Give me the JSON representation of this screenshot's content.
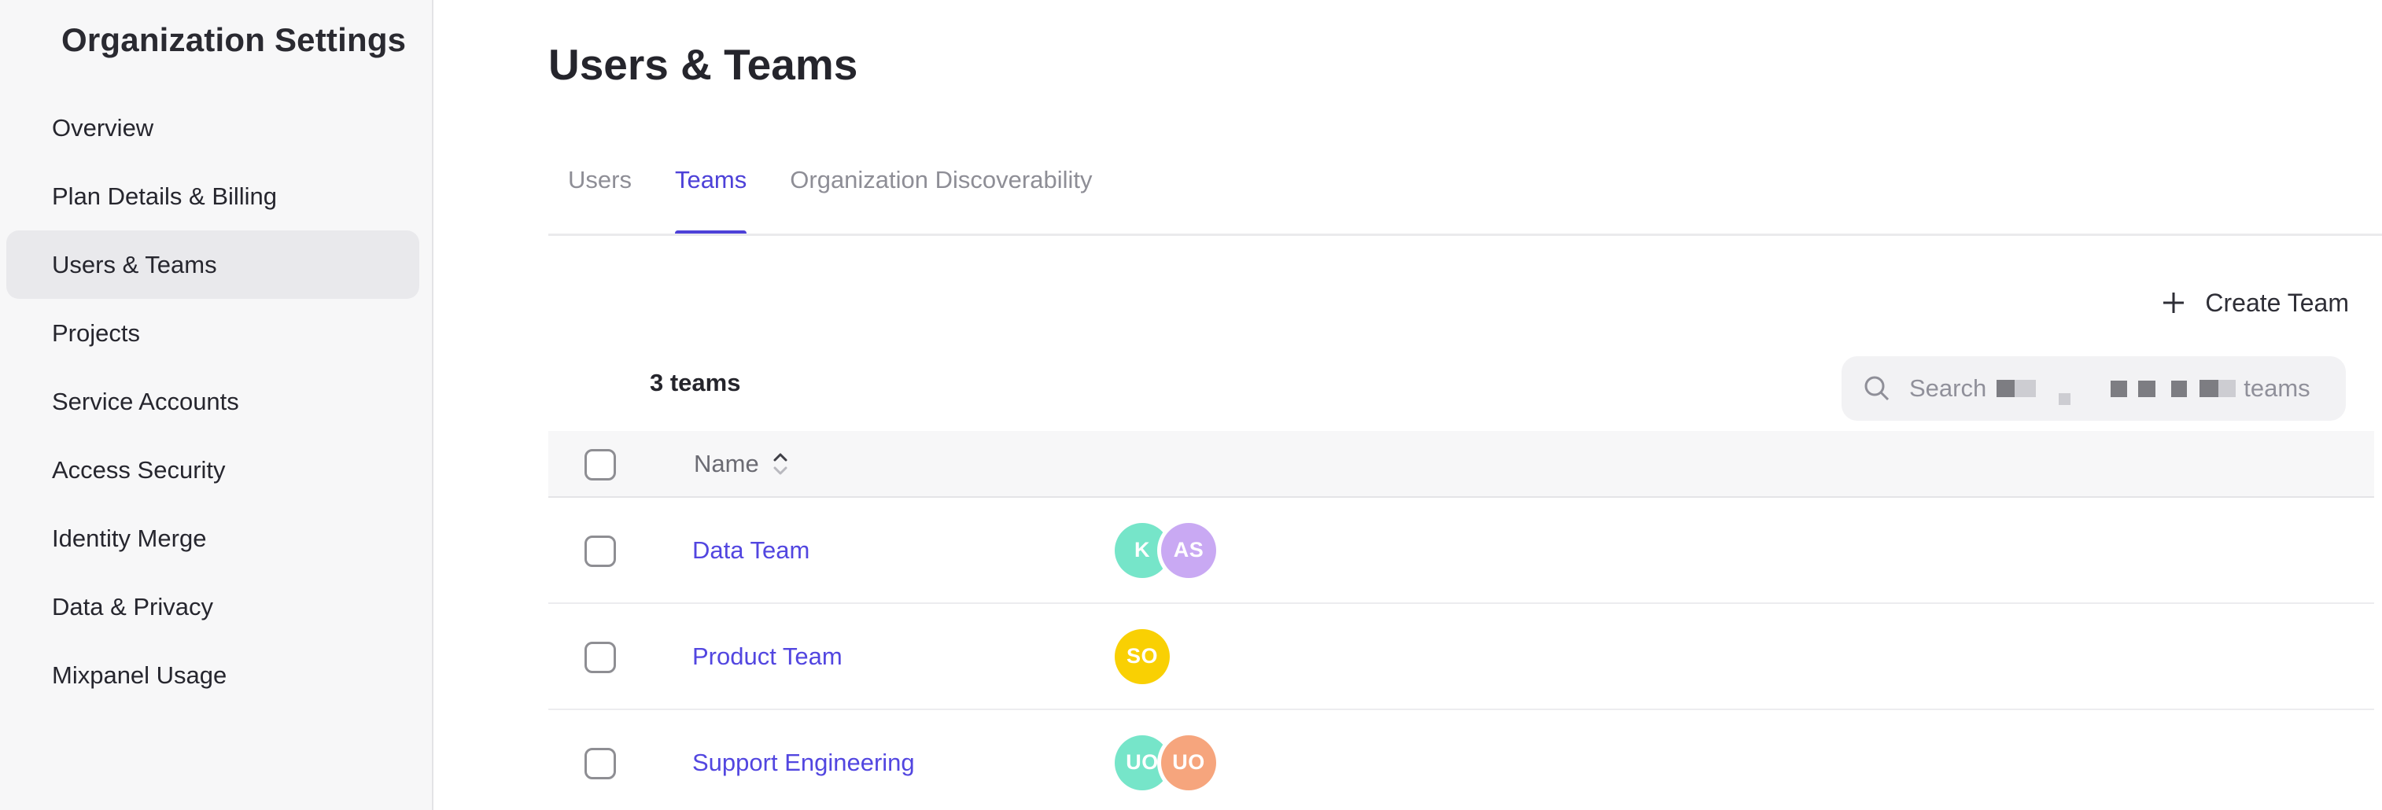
{
  "sidebar": {
    "title": "Organization Settings",
    "items": [
      {
        "label": "Overview",
        "selected": false
      },
      {
        "label": "Plan Details & Billing",
        "selected": false
      },
      {
        "label": "Users & Teams",
        "selected": true
      },
      {
        "label": "Projects",
        "selected": false
      },
      {
        "label": "Service Accounts",
        "selected": false
      },
      {
        "label": "Access Security",
        "selected": false
      },
      {
        "label": "Identity Merge",
        "selected": false
      },
      {
        "label": "Data & Privacy",
        "selected": false
      },
      {
        "label": "Mixpanel Usage",
        "selected": false
      }
    ]
  },
  "header": {
    "title": "Users & Teams"
  },
  "tabs": [
    {
      "label": "Users",
      "active": false
    },
    {
      "label": "Teams",
      "active": true
    },
    {
      "label": "Organization Discoverability",
      "active": false
    }
  ],
  "toolbar": {
    "create_team_label": "Create Team",
    "team_count": "3 teams",
    "search": {
      "prefix": "Search",
      "suffix": "teams"
    }
  },
  "table": {
    "columns": [
      {
        "label": "Name",
        "sortable": true
      }
    ],
    "rows": [
      {
        "name": "Data Team",
        "avatars": [
          {
            "initials": "K",
            "color": "#76e5c9"
          },
          {
            "initials": "AS",
            "color": "#c9a9f3"
          }
        ]
      },
      {
        "name": "Product Team",
        "avatars": [
          {
            "initials": "SO",
            "color": "#f9d003"
          }
        ]
      },
      {
        "name": "Support Engineering",
        "avatars": [
          {
            "initials": "UO",
            "color": "#76e5c9"
          },
          {
            "initials": "UO",
            "color": "#f6a57d"
          }
        ]
      }
    ]
  },
  "colors": {
    "accent": "#4d41d8",
    "link": "#5246e0",
    "sidebar_bg": "#f7f7f8",
    "selected_item_bg": "#e9e9ec",
    "table_header_bg": "#f7f7f8",
    "avatar_teal": "#76e5c9",
    "avatar_purple": "#c9a9f3",
    "avatar_yellow": "#f9d003",
    "avatar_orange": "#f6a57d"
  }
}
